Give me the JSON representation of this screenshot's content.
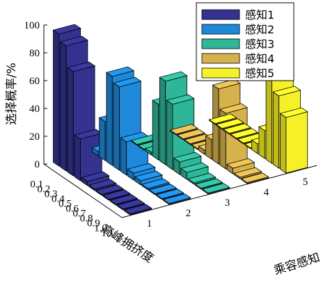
{
  "chart_data": {
    "type": "bar",
    "subtype": "3d-bar",
    "ylabel": "选择概率/%",
    "xlabel": "高峰拥挤度",
    "zlabel": "乘容感知",
    "ylim": [
      0,
      100
    ],
    "yticks": [
      0,
      20,
      40,
      60,
      80,
      100
    ],
    "categories": [
      "0.1",
      "0.2",
      "0.3",
      "0.4",
      "0.5",
      "0.6",
      "0.7",
      "0.8",
      "0.9",
      "1.0",
      "1.1"
    ],
    "depth_categories": [
      "1",
      "2",
      "3",
      "4",
      "5"
    ],
    "legend_position": "top-right",
    "series": [
      {
        "name": "感知1",
        "color": "#33338f",
        "values": [
          95,
          90,
          75,
          30,
          3,
          1,
          0,
          0,
          0,
          0,
          0
        ]
      },
      {
        "name": "感知2",
        "color": "#1f88d9",
        "values": [
          3,
          28,
          64,
          60,
          24,
          5,
          3,
          1,
          0,
          0,
          0
        ]
      },
      {
        "name": "感知3",
        "color": "#2fb598",
        "values": [
          0,
          0,
          2,
          40,
          60,
          47,
          9,
          5,
          1,
          0,
          0
        ]
      },
      {
        "name": "感知4",
        "color": "#d6b24d",
        "values": [
          0,
          0,
          0,
          0,
          3,
          14,
          54,
          40,
          4,
          1,
          0
        ]
      },
      {
        "name": "感知5",
        "color": "#f5f028",
        "values": [
          0,
          0,
          0,
          0,
          0,
          0,
          7,
          20,
          66,
          52,
          40
        ]
      }
    ]
  }
}
